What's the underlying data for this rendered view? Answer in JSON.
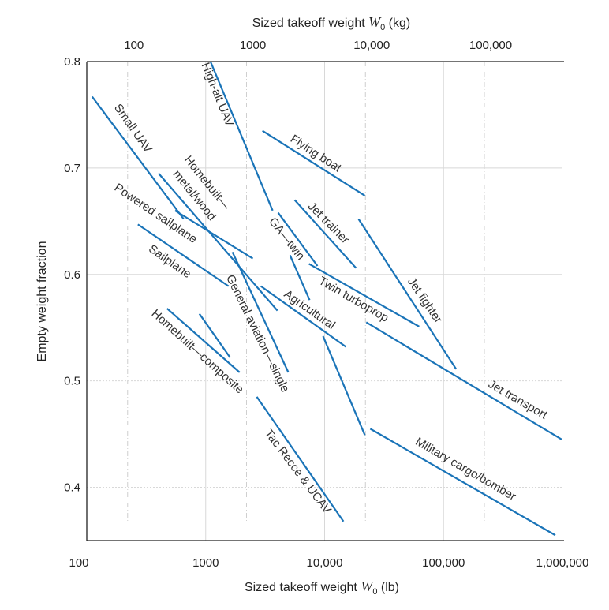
{
  "chart_data": {
    "type": "line",
    "title": "",
    "xlabel_top": {
      "prefix": "Sized takeoff weight ",
      "var": "W",
      "sub": "0",
      "suffix": " (kg)"
    },
    "xlabel": {
      "prefix": "Sized takeoff weight ",
      "var": "W",
      "sub": "0",
      "suffix": " (lb)"
    },
    "ylabel": "Empty weight fraction",
    "x_scale": "log",
    "xlim": [
      100,
      1000000
    ],
    "ylim": [
      0.35,
      0.8
    ],
    "grid": true,
    "line_color": "#1a74b8",
    "x_ticks": [
      {
        "value": 100,
        "label": "100"
      },
      {
        "value": 1000,
        "label": "1000"
      },
      {
        "value": 10000,
        "label": "10,000"
      },
      {
        "value": 100000,
        "label": "100,000"
      },
      {
        "value": 1000000,
        "label": "1,000,000"
      }
    ],
    "x_ticks_top_kg": [
      {
        "value": 100,
        "label": "100"
      },
      {
        "value": 1000,
        "label": "1000"
      },
      {
        "value": 10000,
        "label": "10,000"
      },
      {
        "value": 100000,
        "label": "100,000"
      }
    ],
    "y_ticks": [
      {
        "value": 0.8,
        "label": "0.8"
      },
      {
        "value": 0.7,
        "label": "0.7"
      },
      {
        "value": 0.6,
        "label": "0.6"
      },
      {
        "value": 0.5,
        "label": "0.5"
      },
      {
        "value": 0.4,
        "label": "0.4"
      }
    ],
    "series": [
      {
        "name": "Small UAV",
        "x": [
          111,
          653
        ],
        "y": [
          0.767,
          0.652
        ]
      },
      {
        "name": "High-alt UAV",
        "x": [
          1097,
          3655
        ],
        "y": [
          0.8,
          0.66
        ]
      },
      {
        "name": "Homebuilt—metal/wood",
        "x": [
          401,
          4010
        ],
        "y": [
          0.695,
          0.566
        ]
      },
      {
        "name": "Powered sailplane",
        "x": [
          552,
          2490
        ],
        "y": [
          0.66,
          0.615
        ]
      },
      {
        "name": "Sailplane",
        "x": [
          269,
          1556
        ],
        "y": [
          0.647,
          0.589
        ]
      },
      {
        "name": "General aviation—single",
        "x": [
          1679,
          4955
        ],
        "y": [
          0.621,
          0.508
        ]
      },
      {
        "name": "Flying boat",
        "x": [
          3000,
          21800
        ],
        "y": [
          0.735,
          0.674
        ]
      },
      {
        "name": "GA—twin",
        "x": [
          4065,
          8710
        ],
        "y": [
          0.658,
          0.608
        ]
      },
      {
        "name": "",
        "x": [
          5120,
          7480
        ],
        "y": [
          0.618,
          0.576
        ]
      },
      {
        "name": "Jet trainer",
        "x": [
          5600,
          18400
        ],
        "y": [
          0.67,
          0.606
        ]
      },
      {
        "name": "Twin turboprop",
        "x": [
          7380,
          62400
        ],
        "y": [
          0.61,
          0.551
        ]
      },
      {
        "name": "Jet fighter",
        "x": [
          19300,
          127700
        ],
        "y": [
          0.652,
          0.511
        ]
      },
      {
        "name": "Agricultural",
        "x": [
          2910,
          15100
        ],
        "y": [
          0.589,
          0.532
        ]
      },
      {
        "name": "Jet transport",
        "x": [
          22400,
          984000
        ],
        "y": [
          0.555,
          0.445
        ]
      },
      {
        "name": "",
        "x": [
          9700,
          21800
        ],
        "y": [
          0.542,
          0.449
        ]
      },
      {
        "name": "Military cargo/bomber",
        "x": [
          24200,
          871000
        ],
        "y": [
          0.455,
          0.355
        ]
      },
      {
        "name": "Tac Recce & UCAV",
        "x": [
          2690,
          14400
        ],
        "y": [
          0.485,
          0.368
        ]
      },
      {
        "name": "Homebuilt—composite",
        "x": [
          473,
          1928
        ],
        "y": [
          0.568,
          0.508
        ]
      },
      {
        "name": "",
        "x": [
          885,
          1603
        ],
        "y": [
          0.563,
          0.522
        ]
      }
    ],
    "annotations": [
      {
        "text": "Small UAV"
      },
      {
        "text": "High-alt UAV"
      },
      {
        "text": "Homebuilt—"
      },
      {
        "text": "metal/wood"
      },
      {
        "text": "Powered sailplane"
      },
      {
        "text": "Sailplane"
      },
      {
        "text": "General aviation—single"
      },
      {
        "text": "Flying boat"
      },
      {
        "text": "GA—twin"
      },
      {
        "text": "Jet trainer"
      },
      {
        "text": "Twin turboprop"
      },
      {
        "text": "Jet fighter"
      },
      {
        "text": "Agricultural"
      },
      {
        "text": "Jet transport"
      },
      {
        "text": "Military cargo/bomber"
      },
      {
        "text": "Tac Recce & UCAV"
      },
      {
        "text": "Homebuilt—composite"
      }
    ]
  }
}
